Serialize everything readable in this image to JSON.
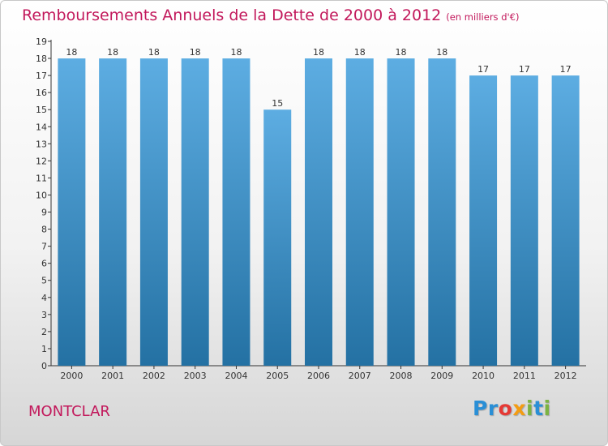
{
  "title": "Remboursements Annuels de la Dette de 2000 à 2012",
  "subtitle": "(en milliers d'€)",
  "commune": "MONTCLAR",
  "logo": {
    "text": "Proxiti",
    "letters": [
      {
        "ch": "P",
        "color": "#2a8fd6"
      },
      {
        "ch": "r",
        "color": "#2a8fd6"
      },
      {
        "ch": "o",
        "color": "#e53935"
      },
      {
        "ch": "x",
        "color": "#f39c12"
      },
      {
        "ch": "i",
        "color": "#7cb342"
      },
      {
        "ch": "t",
        "color": "#2a8fd6"
      },
      {
        "ch": "i",
        "color": "#7cb342"
      }
    ]
  },
  "colors": {
    "bar_top": "#5dade2",
    "bar_bottom": "#2471a3",
    "title": "#c2185b"
  },
  "chart_data": {
    "type": "bar",
    "title": "Remboursements Annuels de la Dette de 2000 à 2012",
    "subtitle": "(en milliers d'€)",
    "categories": [
      "2000",
      "2001",
      "2002",
      "2003",
      "2004",
      "2005",
      "2006",
      "2007",
      "2008",
      "2009",
      "2010",
      "2011",
      "2012"
    ],
    "values": [
      18,
      18,
      18,
      18,
      18,
      15,
      18,
      18,
      18,
      18,
      17,
      17,
      17
    ],
    "ylim": [
      0,
      19
    ],
    "yticks": [
      0,
      1,
      2,
      3,
      4,
      5,
      6,
      7,
      8,
      9,
      10,
      11,
      12,
      13,
      14,
      15,
      16,
      17,
      18,
      19
    ],
    "grid": false,
    "data_labels": true,
    "legend": "none"
  }
}
